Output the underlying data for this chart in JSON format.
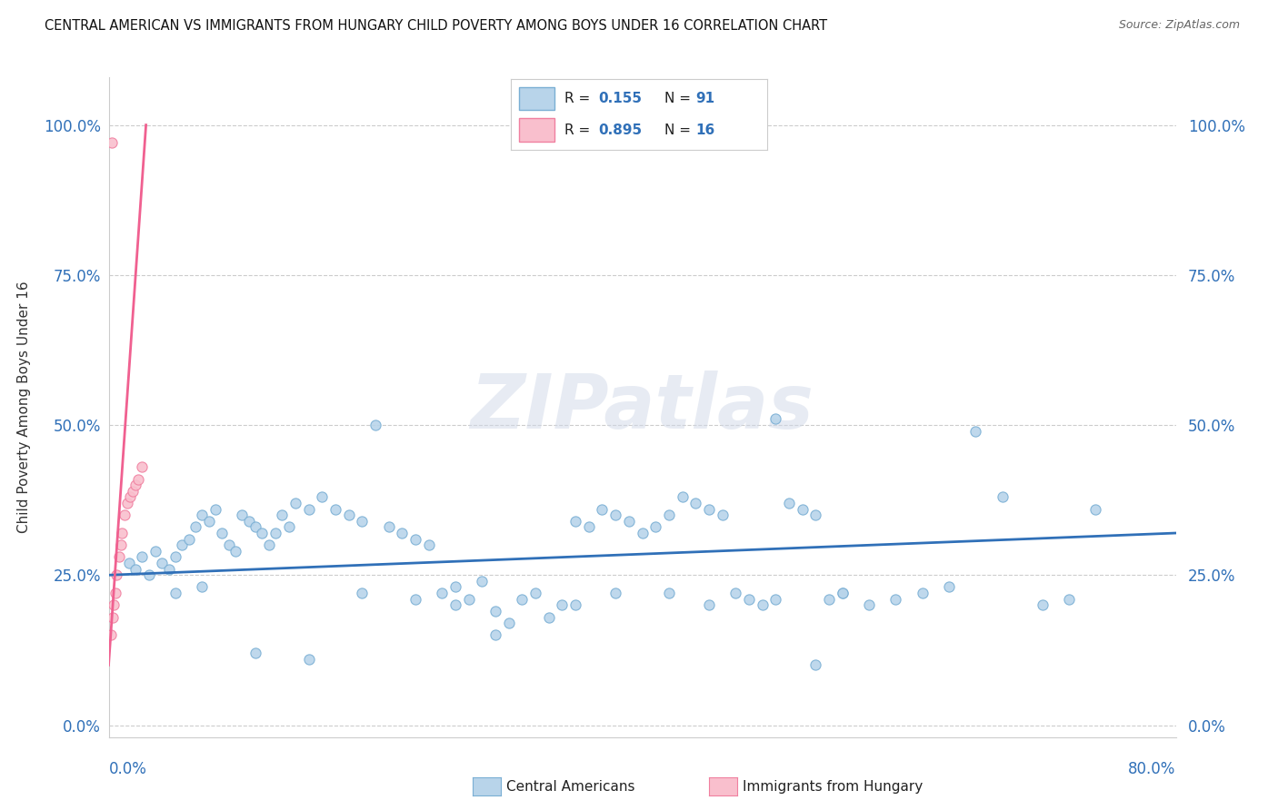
{
  "title": "CENTRAL AMERICAN VS IMMIGRANTS FROM HUNGARY CHILD POVERTY AMONG BOYS UNDER 16 CORRELATION CHART",
  "source": "Source: ZipAtlas.com",
  "ylabel": "Child Poverty Among Boys Under 16",
  "ytick_values": [
    0,
    25,
    50,
    75,
    100
  ],
  "xlim": [
    0,
    80
  ],
  "ylim": [
    -2,
    108
  ],
  "r1_val": "0.155",
  "n1_val": "91",
  "r2_val": "0.895",
  "n2_val": "16",
  "legend_label1": "Central Americans",
  "legend_label2": "Immigrants from Hungary",
  "blue_face": "#b8d4ea",
  "blue_edge": "#7aafd4",
  "pink_face": "#f9bfcd",
  "pink_edge": "#f080a0",
  "blue_line": "#3070b8",
  "pink_line": "#f06090",
  "text_color": "#3070b8",
  "grid_color": "#cccccc",
  "watermark_color": "#d0d8e8",
  "watermark": "ZIPatlas",
  "blue_x": [
    1.5,
    2.0,
    2.5,
    3.0,
    3.5,
    4.0,
    4.5,
    5.0,
    5.5,
    6.0,
    6.5,
    7.0,
    7.5,
    8.0,
    8.5,
    9.0,
    9.5,
    10.0,
    10.5,
    11.0,
    11.5,
    12.0,
    12.5,
    13.0,
    13.5,
    14.0,
    15.0,
    16.0,
    17.0,
    18.0,
    19.0,
    20.0,
    21.0,
    22.0,
    23.0,
    24.0,
    25.0,
    26.0,
    27.0,
    28.0,
    29.0,
    30.0,
    31.0,
    32.0,
    33.0,
    34.0,
    35.0,
    36.0,
    37.0,
    38.0,
    39.0,
    40.0,
    41.0,
    42.0,
    43.0,
    44.0,
    45.0,
    46.0,
    47.0,
    48.0,
    49.0,
    50.0,
    51.0,
    52.0,
    53.0,
    54.0,
    55.0,
    57.0,
    59.0,
    61.0,
    63.0,
    65.0,
    67.0,
    70.0,
    72.0,
    74.0,
    55.0,
    50.0,
    45.0,
    53.0,
    42.0,
    38.0,
    35.0,
    29.0,
    26.0,
    23.0,
    19.0,
    15.0,
    11.0,
    7.0,
    5.0
  ],
  "blue_y": [
    27,
    26,
    28,
    25,
    29,
    27,
    26,
    28,
    30,
    31,
    33,
    35,
    34,
    36,
    32,
    30,
    29,
    35,
    34,
    33,
    32,
    30,
    32,
    35,
    33,
    37,
    36,
    38,
    36,
    35,
    34,
    50,
    33,
    32,
    31,
    30,
    22,
    20,
    21,
    24,
    19,
    17,
    21,
    22,
    18,
    20,
    34,
    33,
    36,
    35,
    34,
    32,
    33,
    35,
    38,
    37,
    36,
    35,
    22,
    21,
    20,
    51,
    37,
    36,
    35,
    21,
    22,
    20,
    21,
    22,
    23,
    49,
    38,
    20,
    21,
    36,
    22,
    21,
    20,
    10,
    22,
    22,
    20,
    15,
    23,
    21,
    22,
    11,
    12,
    23,
    22
  ],
  "pink_x": [
    0.2,
    0.3,
    0.4,
    0.5,
    0.6,
    0.8,
    0.9,
    1.0,
    1.2,
    1.4,
    1.6,
    1.8,
    2.0,
    2.2,
    2.5,
    0.25
  ],
  "pink_y": [
    15,
    18,
    20,
    22,
    25,
    28,
    30,
    32,
    35,
    37,
    38,
    39,
    40,
    41,
    43,
    97
  ],
  "blue_line_x0": 0,
  "blue_line_x1": 80,
  "blue_line_y0": 25,
  "blue_line_y1": 32,
  "pink_line_x0": 0,
  "pink_line_x1": 2.8,
  "pink_line_y0": 10,
  "pink_line_y1": 100
}
